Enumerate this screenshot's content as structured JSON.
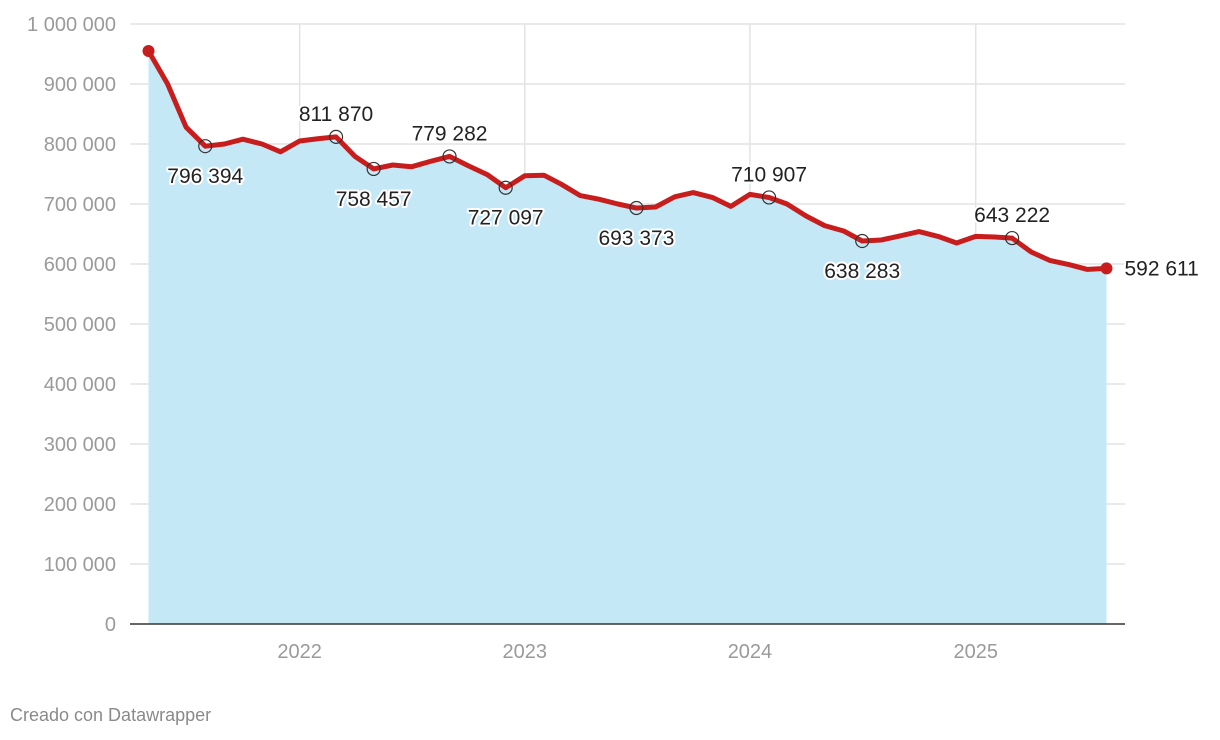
{
  "credit": "Creado con Datawrapper",
  "colors": {
    "area": "#c5e8f7",
    "line": "#c71e1d",
    "grid": "#e3e3e3",
    "axis": "#333333",
    "tick": "#9a9a9a",
    "label": "#222222"
  },
  "chart_data": {
    "type": "area",
    "title": "",
    "xlabel": "",
    "ylabel": "",
    "ylim": [
      0,
      1000000
    ],
    "xlim": [
      "2021-04-01",
      "2025-08-31"
    ],
    "yticks": [
      0,
      100000,
      200000,
      300000,
      400000,
      500000,
      600000,
      700000,
      800000,
      900000,
      1000000
    ],
    "ytick_labels": [
      "0",
      "100 000",
      "200 000",
      "300 000",
      "400 000",
      "500 000",
      "600 000",
      "700 000",
      "800 000",
      "900 000",
      "1 000 000"
    ],
    "xticks": [
      "2022-01-01",
      "2023-01-01",
      "2024-01-01",
      "2025-01-01"
    ],
    "xtick_labels": [
      "2022",
      "2023",
      "2024",
      "2025"
    ],
    "grid": true,
    "series": [
      {
        "x": [
          "2021-05-01",
          "2021-06-01",
          "2021-07-01",
          "2021-08-01",
          "2021-09-01",
          "2021-10-01",
          "2021-11-01",
          "2021-12-01",
          "2022-01-01",
          "2022-02-01",
          "2022-03-01",
          "2022-04-01",
          "2022-05-01",
          "2022-06-01",
          "2022-07-01",
          "2022-08-01",
          "2022-09-01",
          "2022-10-01",
          "2022-11-01",
          "2022-12-01",
          "2023-01-01",
          "2023-02-01",
          "2023-03-01",
          "2023-04-01",
          "2023-05-01",
          "2023-06-01",
          "2023-07-01",
          "2023-08-01",
          "2023-09-01",
          "2023-10-01",
          "2023-11-01",
          "2023-12-01",
          "2024-01-01",
          "2024-02-01",
          "2024-03-01",
          "2024-04-01",
          "2024-05-01",
          "2024-06-01",
          "2024-07-01",
          "2024-08-01",
          "2024-09-01",
          "2024-10-01",
          "2024-11-01",
          "2024-12-01",
          "2025-01-01",
          "2025-02-01",
          "2025-03-01",
          "2025-04-01",
          "2025-05-01",
          "2025-06-01",
          "2025-07-01",
          "2025-08-01"
        ],
        "values": [
          955000,
          900000,
          828000,
          796394,
          800000,
          808000,
          800000,
          787000,
          805000,
          809000,
          811870,
          779000,
          758457,
          765000,
          762000,
          771000,
          779282,
          764000,
          749000,
          727097,
          747000,
          748000,
          733000,
          714000,
          708000,
          700000,
          693373,
          695000,
          712000,
          719000,
          711000,
          696000,
          716000,
          710907,
          700000,
          680000,
          664000,
          655000,
          638283,
          640000,
          647000,
          654000,
          646000,
          635000,
          646000,
          645000,
          643222,
          620000,
          606000,
          599000,
          591000,
          592611
        ]
      }
    ],
    "annotations": [
      {
        "x": "2021-08-01",
        "value": 796394,
        "label": "796 394",
        "pos": "below"
      },
      {
        "x": "2022-03-01",
        "value": 811870,
        "label": "811 870",
        "pos": "above"
      },
      {
        "x": "2022-05-01",
        "value": 758457,
        "label": "758 457",
        "pos": "below"
      },
      {
        "x": "2022-09-01",
        "value": 779282,
        "label": "779 282",
        "pos": "above"
      },
      {
        "x": "2022-12-01",
        "value": 727097,
        "label": "727 097",
        "pos": "below"
      },
      {
        "x": "2023-07-01",
        "value": 693373,
        "label": "693 373",
        "pos": "below"
      },
      {
        "x": "2024-02-01",
        "value": 710907,
        "label": "710 907",
        "pos": "above"
      },
      {
        "x": "2024-07-01",
        "value": 638283,
        "label": "638 283",
        "pos": "below"
      },
      {
        "x": "2025-03-01",
        "value": 643222,
        "label": "643 222",
        "pos": "above"
      },
      {
        "x": "2025-08-01",
        "value": 592611,
        "label": "592 611",
        "pos": "right",
        "endpoint": true
      }
    ],
    "start_point": {
      "x": "2021-05-01",
      "value": 955000
    }
  }
}
